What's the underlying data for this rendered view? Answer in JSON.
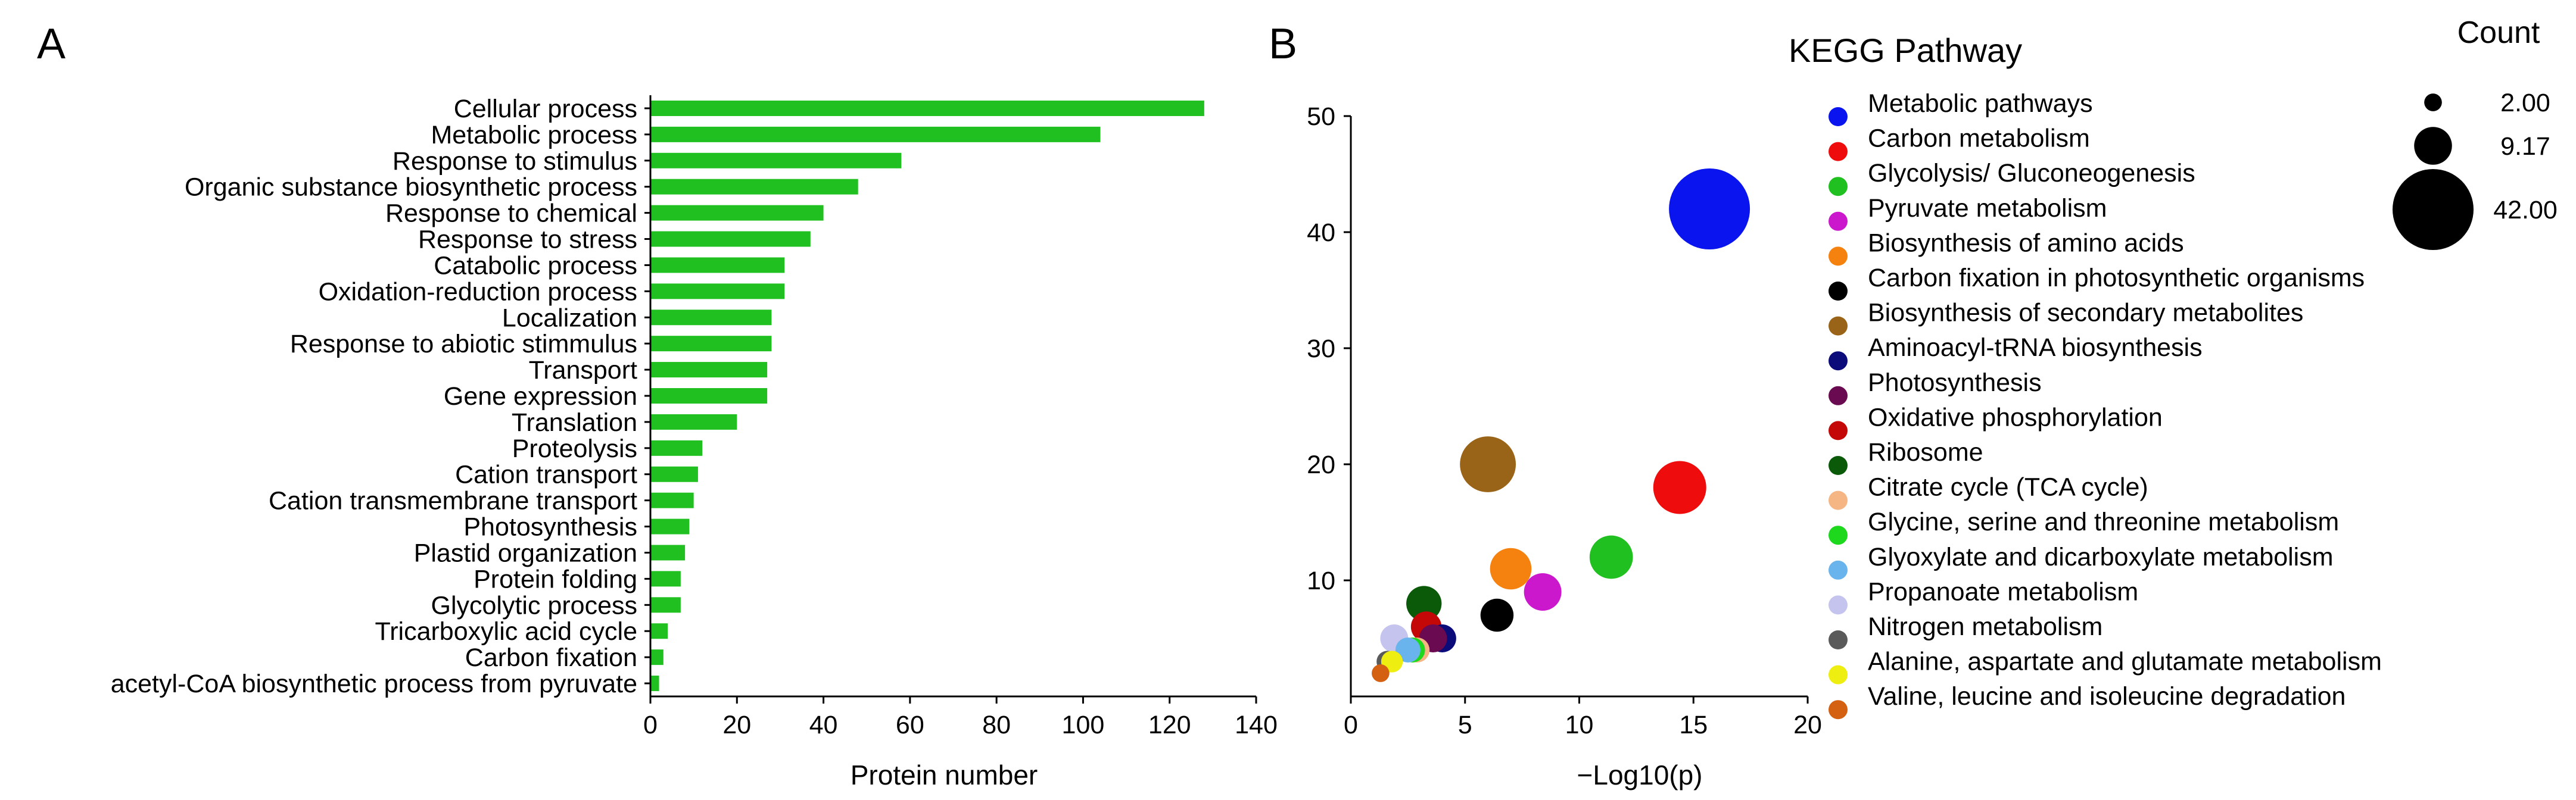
{
  "chart_data": [
    {
      "panel_label": "A",
      "type": "bar",
      "orientation": "horizontal",
      "title": "",
      "xlabel": "Protein number",
      "ylabel": "",
      "xlim": [
        0,
        140
      ],
      "xticks": [
        "0",
        "20",
        "40",
        "60",
        "80",
        "100",
        "120",
        "140"
      ],
      "bar_color": "#1fc01f",
      "categories": [
        "Cellular process",
        "Metabolic process",
        "Response to stimulus",
        "Organic substance biosynthetic process",
        "Response to chemical",
        "Response to stress",
        "Catabolic process",
        "Oxidation-reduction process",
        "Localization",
        "Response to abiotic stimmulus",
        "Transport",
        "Gene expression",
        "Translation",
        "Proteolysis",
        "Cation transport",
        "Cation transmembrane transport",
        "Photosynthesis",
        "Plastid organization",
        "Protein folding",
        "Glycolytic process",
        "Tricarboxylic acid cycle",
        "Carbon fixation",
        "acetyl-CoA biosynthetic process from pyruvate"
      ],
      "values": [
        128,
        104,
        58,
        48,
        40,
        37,
        31,
        31,
        28,
        28,
        27,
        27,
        20,
        12,
        11,
        10,
        9,
        8,
        7,
        7,
        4,
        3,
        2
      ]
    },
    {
      "panel_label": "B",
      "type": "scatter",
      "title": "",
      "xlabel": "−Log10(p)",
      "ylabel": "",
      "xlim": [
        0,
        20
      ],
      "ylim": [
        0,
        50
      ],
      "xticks": [
        "0",
        "5",
        "10",
        "15",
        "20"
      ],
      "yticks": [
        "10",
        "20",
        "30",
        "40",
        "50"
      ],
      "legend_title": "KEGG Pathway",
      "size_legend": {
        "title": "Count",
        "entries": [
          {
            "label": "2.00",
            "value": 2
          },
          {
            "label": "9.17",
            "value": 9.17
          },
          {
            "label": "42.00",
            "value": 42
          }
        ]
      },
      "points": [
        {
          "name": "Metabolic pathways",
          "x": 15.7,
          "y": 42,
          "count": 42,
          "color": "#0a14ee"
        },
        {
          "name": "Carbon metabolism",
          "x": 14.4,
          "y": 18,
          "count": 18,
          "color": "#ee0c0c"
        },
        {
          "name": "Glycolysis/ Gluconeogenesis",
          "x": 11.4,
          "y": 12,
          "count": 12,
          "color": "#1fc01f"
        },
        {
          "name": "Pyruvate metabolism",
          "x": 8.4,
          "y": 9,
          "count": 9,
          "color": "#cc18cc"
        },
        {
          "name": "Biosynthesis of amino acids",
          "x": 7.0,
          "y": 11,
          "count": 11,
          "color": "#f5820f"
        },
        {
          "name": "Carbon fixation in photosynthetic organisms",
          "x": 6.4,
          "y": 7,
          "count": 7,
          "color": "#000000"
        },
        {
          "name": "Biosynthesis of secondary metabolites",
          "x": 6.0,
          "y": 20,
          "count": 20,
          "color": "#9a6418"
        },
        {
          "name": "Aminoacyl-tRNA biosynthesis",
          "x": 4.0,
          "y": 5,
          "count": 5,
          "color": "#0b0b7a"
        },
        {
          "name": "Photosynthesis",
          "x": 3.6,
          "y": 5,
          "count": 5,
          "color": "#6a0a50"
        },
        {
          "name": "Oxidative phosphorylation",
          "x": 3.3,
          "y": 6,
          "count": 6,
          "color": "#c40808"
        },
        {
          "name": "Ribosome",
          "x": 3.2,
          "y": 8,
          "count": 8,
          "color": "#0a5a0a"
        },
        {
          "name": "Citrate cycle (TCA cycle)",
          "x": 2.9,
          "y": 4,
          "count": 4,
          "color": "#f5b684"
        },
        {
          "name": "Glycine, serine and threonine metabolism",
          "x": 2.7,
          "y": 4,
          "count": 4,
          "color": "#1ed81e"
        },
        {
          "name": "Glyoxylate and dicarboxylate metabolism",
          "x": 2.5,
          "y": 4,
          "count": 4,
          "color": "#6ab4ee"
        },
        {
          "name": "Propanoate metabolism",
          "x": 1.9,
          "y": 5,
          "count": 5,
          "color": "#c4c4ee"
        },
        {
          "name": "Nitrogen metabolism",
          "x": 1.6,
          "y": 3,
          "count": 3,
          "color": "#5a5a5a"
        },
        {
          "name": "Alanine, aspartate and glutamate metabolism",
          "x": 1.8,
          "y": 3,
          "count": 3,
          "color": "#eeee10"
        },
        {
          "name": "Valine, leucine and isoleucine degradation",
          "x": 1.3,
          "y": 2,
          "count": 2,
          "color": "#d46012"
        }
      ]
    }
  ]
}
